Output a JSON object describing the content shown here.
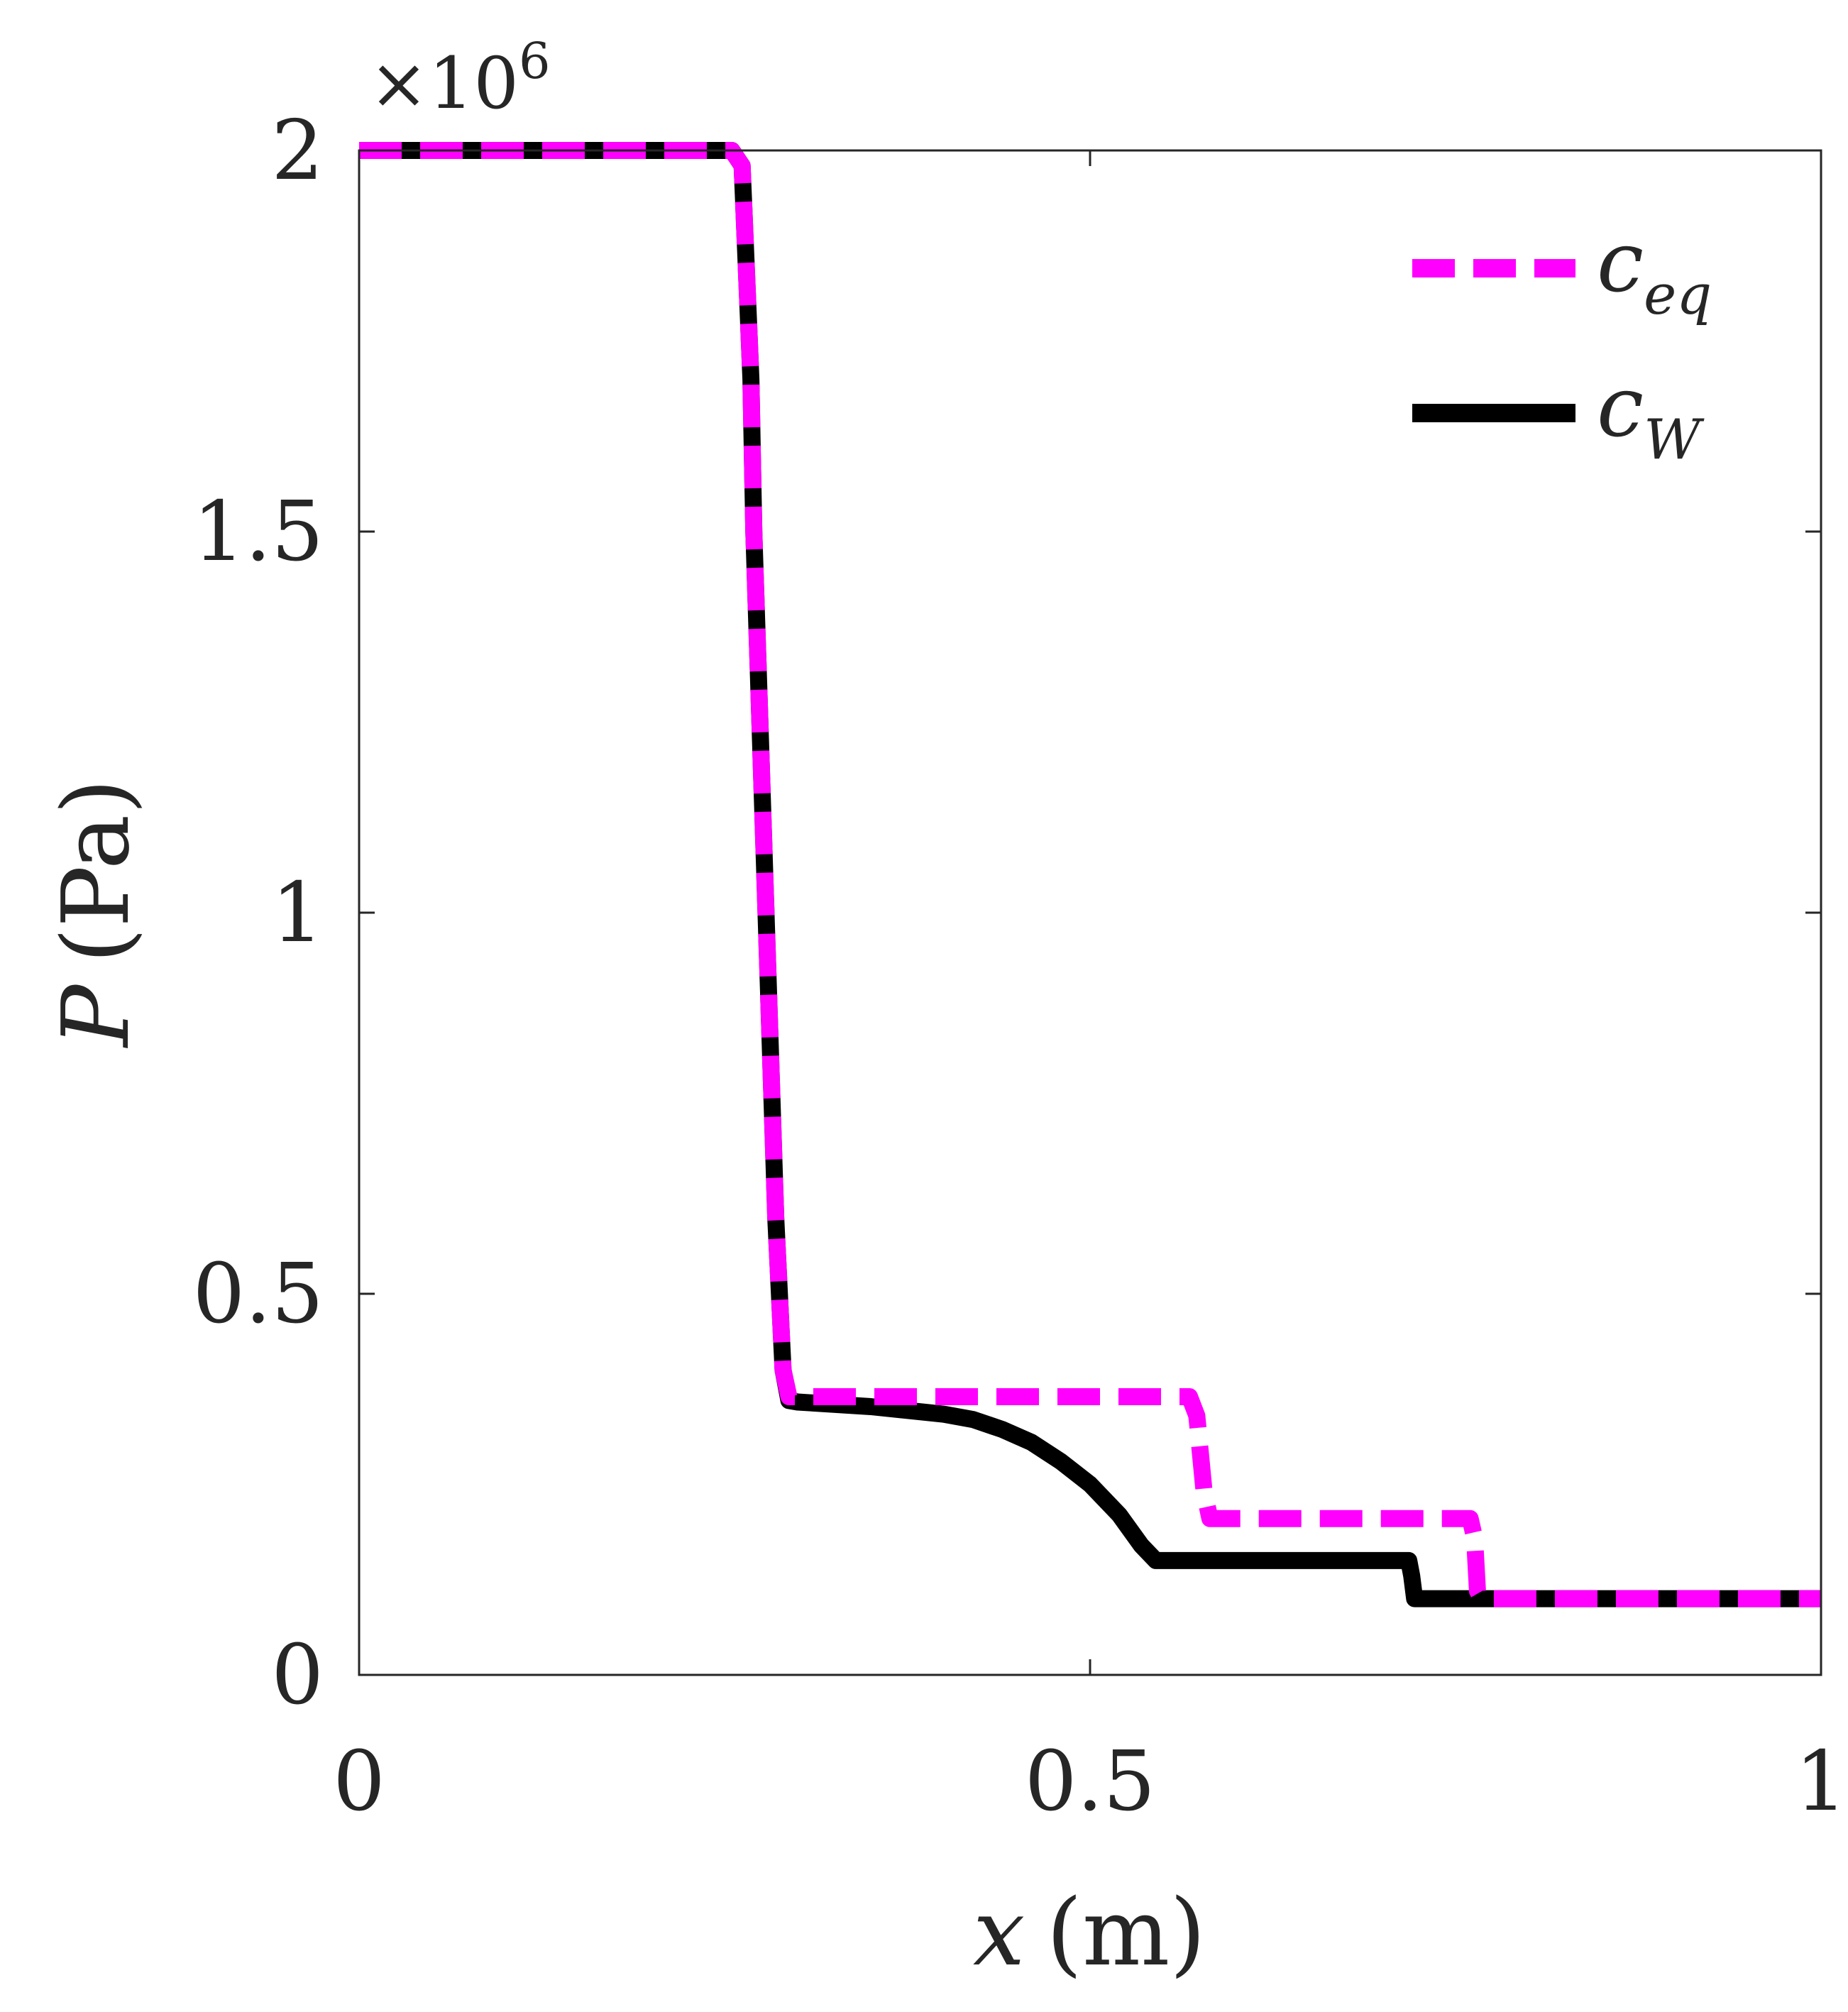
{
  "chart_data": {
    "type": "line",
    "title": "",
    "xlabel_var": "x",
    "xlabel_unit": "(m)",
    "ylabel_var": "P",
    "ylabel_unit": "(Pa)",
    "xlim": [
      0,
      1
    ],
    "ylim": [
      0,
      2000000
    ],
    "y_exponent_label": "×10",
    "y_exponent_power": "6",
    "x_ticks": [
      {
        "value": 0,
        "label": "0"
      },
      {
        "value": 0.5,
        "label": "0.5"
      },
      {
        "value": 1,
        "label": "1"
      }
    ],
    "y_ticks": [
      {
        "value": 0,
        "label": "0"
      },
      {
        "value": 500000,
        "label": "0.5"
      },
      {
        "value": 1000000,
        "label": "1"
      },
      {
        "value": 1500000,
        "label": "1.5"
      },
      {
        "value": 2000000,
        "label": "2"
      }
    ],
    "legend_position": "top-right",
    "series": [
      {
        "name": "c_eq",
        "legend_base": "c",
        "legend_sub": "eq",
        "color": "#ff00ff",
        "style": "dashed",
        "points": [
          [
            0,
            2000000
          ],
          [
            0.255,
            2000000
          ],
          [
            0.262,
            1980000
          ],
          [
            0.268,
            1700000
          ],
          [
            0.27,
            1500000
          ],
          [
            0.275,
            1200000
          ],
          [
            0.28,
            900000
          ],
          [
            0.285,
            600000
          ],
          [
            0.29,
            400000
          ],
          [
            0.294,
            365000
          ],
          [
            0.3,
            365000
          ],
          [
            0.4,
            365000
          ],
          [
            0.5,
            365000
          ],
          [
            0.568,
            365000
          ],
          [
            0.573,
            340000
          ],
          [
            0.578,
            240000
          ],
          [
            0.582,
            205000
          ],
          [
            0.6,
            205000
          ],
          [
            0.7,
            205000
          ],
          [
            0.76,
            205000
          ],
          [
            0.763,
            180000
          ],
          [
            0.765,
            110000
          ],
          [
            0.768,
            100000
          ],
          [
            0.8,
            100000
          ],
          [
            0.9,
            100000
          ],
          [
            1.0,
            100000
          ]
        ]
      },
      {
        "name": "c_W",
        "legend_base": "c",
        "legend_sub": "W",
        "color": "#000000",
        "style": "solid",
        "points": [
          [
            0,
            2000000
          ],
          [
            0.255,
            2000000
          ],
          [
            0.262,
            1980000
          ],
          [
            0.268,
            1700000
          ],
          [
            0.27,
            1500000
          ],
          [
            0.275,
            1200000
          ],
          [
            0.28,
            900000
          ],
          [
            0.285,
            600000
          ],
          [
            0.29,
            400000
          ],
          [
            0.294,
            360000
          ],
          [
            0.3,
            358000
          ],
          [
            0.35,
            352000
          ],
          [
            0.4,
            342000
          ],
          [
            0.42,
            335000
          ],
          [
            0.44,
            322000
          ],
          [
            0.46,
            305000
          ],
          [
            0.48,
            280000
          ],
          [
            0.5,
            250000
          ],
          [
            0.52,
            210000
          ],
          [
            0.535,
            170000
          ],
          [
            0.545,
            150000
          ],
          [
            0.6,
            150000
          ],
          [
            0.65,
            150000
          ],
          [
            0.718,
            150000
          ],
          [
            0.72,
            130000
          ],
          [
            0.722,
            100000
          ],
          [
            0.73,
            100000
          ],
          [
            0.8,
            100000
          ],
          [
            0.9,
            100000
          ],
          [
            1.0,
            100000
          ]
        ]
      }
    ]
  }
}
